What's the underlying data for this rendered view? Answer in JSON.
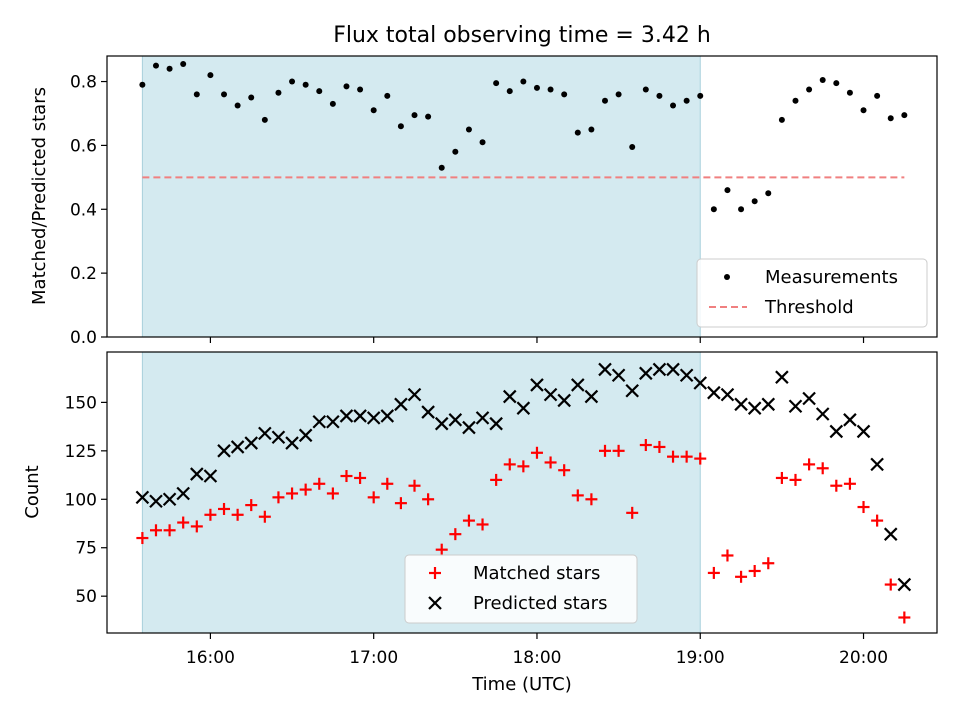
{
  "chart_data": [
    {
      "type": "scatter",
      "title": "Flux total observing time = 3.42 h",
      "xlabel": "",
      "ylabel": "Matched/Predicted stars",
      "xlim": [
        "15:22",
        "20:27"
      ],
      "ylim": [
        0,
        0.88
      ],
      "y_ticks": [
        0.0,
        0.2,
        0.4,
        0.6,
        0.8
      ],
      "y_tick_labels": [
        "0.0",
        "0.2",
        "0.4",
        "0.6",
        "0.8"
      ],
      "shaded_interval": [
        "15:35",
        "19:00"
      ],
      "shade_color": "#d4eaf0",
      "threshold": {
        "value": 0.5,
        "x_range": [
          "15:35",
          "20:15"
        ],
        "color": "#f08080"
      },
      "legend_position": "lower-right",
      "legend": [
        {
          "label": "Measurements",
          "marker": "dot",
          "color": "#000000"
        },
        {
          "label": "Threshold",
          "marker": "dashed-line",
          "color": "#f08080"
        }
      ],
      "series": [
        {
          "name": "Measurements",
          "x": [
            "15:35",
            "15:40",
            "15:45",
            "15:50",
            "15:55",
            "16:00",
            "16:05",
            "16:10",
            "16:15",
            "16:20",
            "16:25",
            "16:30",
            "16:35",
            "16:40",
            "16:45",
            "16:50",
            "16:55",
            "17:00",
            "17:05",
            "17:10",
            "17:15",
            "17:20",
            "17:25",
            "17:30",
            "17:35",
            "17:40",
            "17:45",
            "17:50",
            "17:55",
            "18:00",
            "18:05",
            "18:10",
            "18:15",
            "18:20",
            "18:25",
            "18:30",
            "18:35",
            "18:40",
            "18:45",
            "18:50",
            "18:55",
            "19:00",
            "19:05",
            "19:10",
            "19:15",
            "19:20",
            "19:25",
            "19:30",
            "19:35",
            "19:40",
            "19:45",
            "19:50",
            "19:55",
            "20:00",
            "20:05",
            "20:10",
            "20:15"
          ],
          "y": [
            0.79,
            0.85,
            0.84,
            0.855,
            0.76,
            0.82,
            0.76,
            0.725,
            0.75,
            0.68,
            0.765,
            0.8,
            0.79,
            0.77,
            0.73,
            0.785,
            0.775,
            0.71,
            0.755,
            0.66,
            0.695,
            0.69,
            0.53,
            0.58,
            0.65,
            0.61,
            0.795,
            0.77,
            0.8,
            0.78,
            0.775,
            0.76,
            0.64,
            0.65,
            0.74,
            0.76,
            0.595,
            0.775,
            0.755,
            0.725,
            0.74,
            0.755,
            0.4,
            0.46,
            0.4,
            0.425,
            0.45,
            0.68,
            0.74,
            0.775,
            0.805,
            0.795,
            0.765,
            0.71,
            0.755,
            0.685,
            0.695
          ]
        }
      ]
    },
    {
      "type": "scatter",
      "xlabel": "Time (UTC)",
      "ylabel": "Count",
      "xlim": [
        "15:22",
        "20:27"
      ],
      "ylim": [
        31,
        176
      ],
      "x_ticks": [
        "16:00",
        "17:00",
        "18:00",
        "19:00",
        "20:00"
      ],
      "x_tick_labels": [
        "16:00",
        "17:00",
        "18:00",
        "19:00",
        "20:00"
      ],
      "y_ticks": [
        50,
        75,
        100,
        125,
        150
      ],
      "y_tick_labels": [
        "50",
        "75",
        "100",
        "125",
        "150"
      ],
      "shaded_interval": [
        "15:35",
        "19:00"
      ],
      "shade_color": "#d4eaf0",
      "legend_position": "lower-center",
      "legend": [
        {
          "label": "Matched stars",
          "marker": "plus",
          "color": "#ff0000"
        },
        {
          "label": "Predicted stars",
          "marker": "x",
          "color": "#000000"
        }
      ],
      "x": [
        "15:35",
        "15:40",
        "15:45",
        "15:50",
        "15:55",
        "16:00",
        "16:05",
        "16:10",
        "16:15",
        "16:20",
        "16:25",
        "16:30",
        "16:35",
        "16:40",
        "16:45",
        "16:50",
        "16:55",
        "17:00",
        "17:05",
        "17:10",
        "17:15",
        "17:20",
        "17:25",
        "17:30",
        "17:35",
        "17:40",
        "17:45",
        "17:50",
        "17:55",
        "18:00",
        "18:05",
        "18:10",
        "18:15",
        "18:20",
        "18:25",
        "18:30",
        "18:35",
        "18:40",
        "18:45",
        "18:50",
        "18:55",
        "19:00",
        "19:05",
        "19:10",
        "19:15",
        "19:20",
        "19:25",
        "19:30",
        "19:35",
        "19:40",
        "19:45",
        "19:50",
        "19:55",
        "20:00",
        "20:05",
        "20:10",
        "20:15"
      ],
      "series": [
        {
          "name": "Matched stars",
          "color": "#ff0000",
          "marker": "plus",
          "y": [
            80,
            84,
            84,
            88,
            86,
            92,
            95,
            92,
            97,
            91,
            101,
            103,
            105,
            108,
            103,
            112,
            111,
            101,
            108,
            98,
            107,
            100,
            74,
            82,
            89,
            87,
            110,
            118,
            117,
            124,
            119,
            115,
            102,
            100,
            125,
            125,
            93,
            128,
            127,
            122,
            122,
            121,
            62,
            71,
            60,
            63,
            67,
            111,
            110,
            118,
            116,
            107,
            108,
            96,
            89,
            56,
            39
          ]
        },
        {
          "name": "Predicted stars",
          "color": "#000000",
          "marker": "x",
          "y": [
            101,
            99,
            100,
            103,
            113,
            112,
            125,
            127,
            129,
            134,
            132,
            129,
            133,
            140,
            140,
            143,
            143,
            142,
            143,
            149,
            154,
            145,
            139,
            141,
            137,
            142,
            139,
            153,
            147,
            159,
            154,
            151,
            159,
            153,
            167,
            164,
            156,
            165,
            167,
            167,
            164,
            160,
            155,
            154,
            149,
            147,
            149,
            163,
            148,
            152,
            144,
            135,
            141,
            135,
            118,
            82,
            56
          ]
        }
      ]
    }
  ]
}
